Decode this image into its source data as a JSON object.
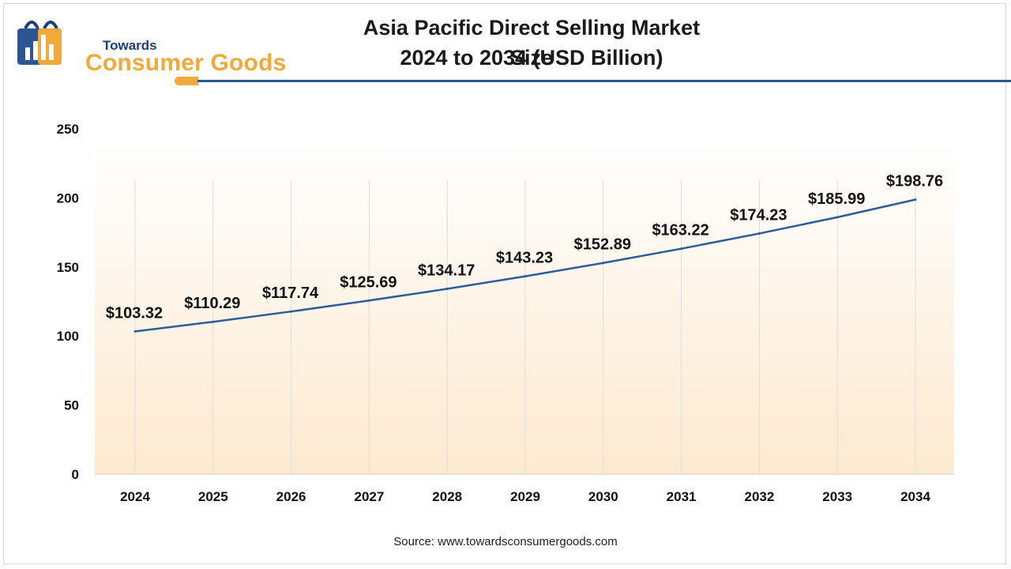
{
  "header": {
    "logo_small": "Towards",
    "logo_big": "Consumer Goods",
    "title_line1": "Asia Pacific Direct Selling Market Size",
    "title_line2": "2024 to 2034 (USD Billion)"
  },
  "footer": {
    "source": "Source: www.towardsconsumergoods.com"
  },
  "colors": {
    "line": "#2f5b99",
    "accent": "#f2a93b",
    "brand": "#1f3f7a"
  },
  "chart_data": {
    "type": "line",
    "title": "Asia Pacific Direct Selling Market Size 2024 to 2034 (USD Billion)",
    "x": [
      "2024",
      "2025",
      "2026",
      "2027",
      "2028",
      "2029",
      "2030",
      "2031",
      "2032",
      "2033",
      "2034"
    ],
    "series": [
      {
        "values": [
          103.32,
          110.29,
          117.74,
          125.69,
          134.17,
          143.23,
          152.89,
          163.22,
          174.23,
          185.99,
          198.76
        ],
        "labels": [
          "$103.32",
          "$110.29",
          "$117.74",
          "$125.69",
          "$134.17",
          "$143.23",
          "$152.89",
          "$163.22",
          "$174.23",
          "$185.99",
          "$198.76"
        ]
      }
    ],
    "yticks": [
      0,
      50,
      100,
      150,
      200,
      250
    ],
    "ylim": [
      0,
      250
    ],
    "xlabel": "",
    "ylabel": "",
    "grid": "vertical lines at each year",
    "legend": "none"
  }
}
